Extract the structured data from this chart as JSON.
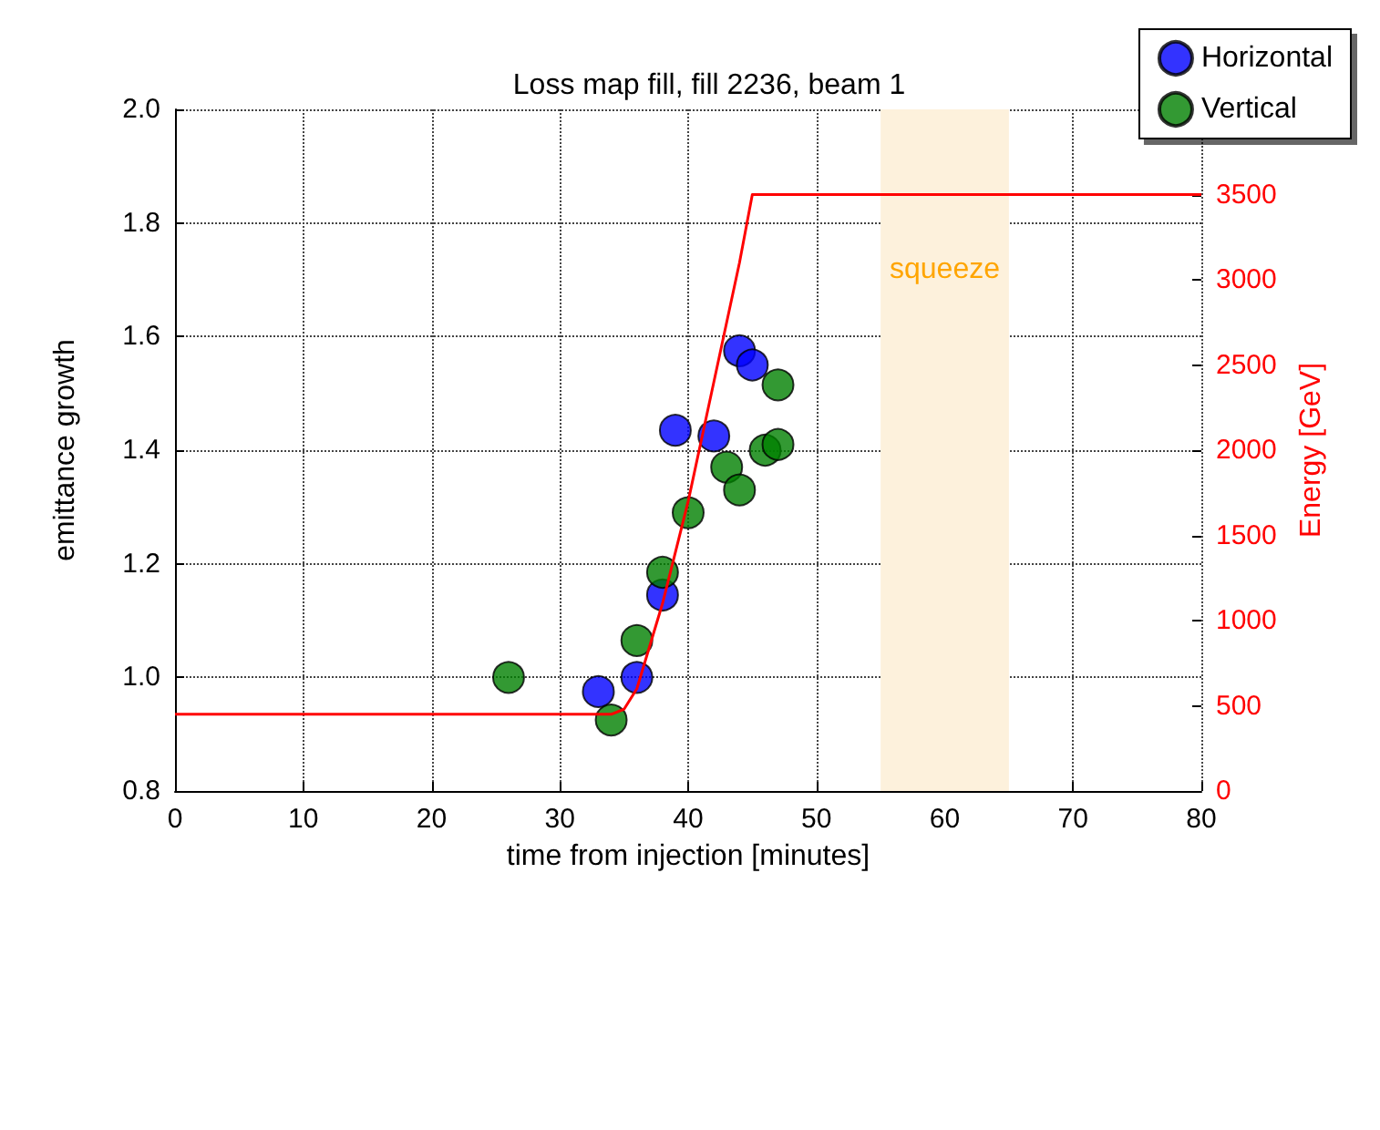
{
  "chart_data": {
    "type": "scatter",
    "title": "Loss map fill, fill 2236, beam 1",
    "xlabel": "time from injection [minutes]",
    "ylabel": "emittance growth",
    "y2label": "Energy [GeV]",
    "xlim": [
      0,
      80
    ],
    "xticks": [
      0,
      10,
      20,
      30,
      40,
      50,
      60,
      70,
      80
    ],
    "ylim": [
      0.8,
      2.0
    ],
    "yticks": [
      0.8,
      {
        "value": 1,
        "label": "1.0"
      },
      1.2,
      1.4,
      1.6,
      1.8,
      {
        "value": 2,
        "label": "2.0"
      }
    ],
    "y2lim": [
      0,
      4000
    ],
    "y2ticks": [
      0,
      500,
      1000,
      1500,
      2000,
      2500,
      3000,
      3500
    ],
    "grid": true,
    "legend": "top right",
    "marker": "circle",
    "bands": [
      {
        "axis": "x",
        "from": 55,
        "to": 65,
        "label": "squeeze",
        "color": "#fdf1dc"
      }
    ],
    "series": [
      {
        "name": "Horizontal",
        "color": "#0000ff",
        "x": [
          33,
          36,
          38,
          39,
          42,
          44,
          45
        ],
        "values": [
          0.975,
          1.0,
          1.145,
          1.435,
          1.425,
          1.575,
          1.55
        ]
      },
      {
        "name": "Vertical",
        "color": "#007f00",
        "x": [
          26,
          34,
          36,
          38,
          40,
          43,
          44,
          46,
          47,
          47
        ],
        "values": [
          1.0,
          0.925,
          1.065,
          1.185,
          1.29,
          1.37,
          1.33,
          1.4,
          1.41,
          1.515
        ]
      },
      {
        "type": "line",
        "axis": "y2",
        "color": "#ff0000",
        "marker": "none",
        "line_style": "solid",
        "x": [
          0,
          34,
          35,
          36,
          37,
          38,
          40,
          42,
          44,
          45,
          80
        ],
        "values": [
          450,
          450,
          480,
          600,
          850,
          1100,
          1700,
          2400,
          3100,
          3500,
          3500
        ]
      }
    ]
  }
}
